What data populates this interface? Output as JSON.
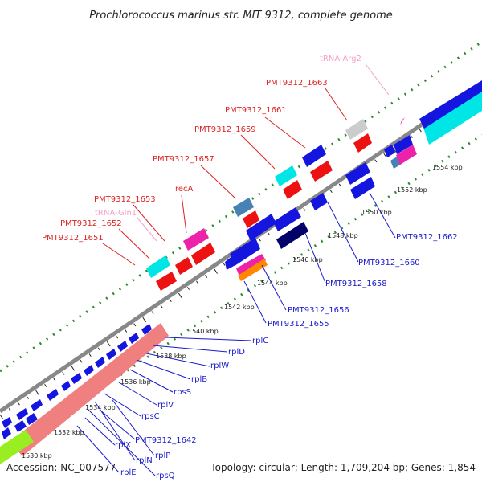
{
  "title": "Prochlorococcus marinus str. MIT 9312, complete genome",
  "footer": {
    "accession": "Accession: NC_007577",
    "info": "Topology: circular; Length: 1,709,204 bp; Genes: 1,854"
  },
  "colors": {
    "backbone": "#888888",
    "dotted": "#2e8b2e",
    "label_top": "#dd2222",
    "label_bottom": "#1a1acc",
    "label_trna": "#f4a0c8",
    "gene_blue": "#1515e0",
    "gene_red": "#ee1111",
    "gene_salmon": "#f08080",
    "gene_cyan": "#00e5e5",
    "gene_magenta": "#ee22aa",
    "gene_steel": "#4682b4",
    "gene_navy": "#00006a",
    "gene_orange": "#ff8800",
    "gene_gray": "#cccccc",
    "gene_lime": "#99ee22"
  },
  "ticks": [
    "1530 kbp",
    "1532 kbp",
    "1534 kbp",
    "1536 kbp",
    "1538 kbp",
    "1540 kbp",
    "1542 kbp",
    "1544 kbp",
    "1546 kbp",
    "1548 kbp",
    "1550 kbp",
    "1552 kbp",
    "1554 kbp"
  ],
  "top_labels": [
    "PMT9312_1663",
    "PMT9312_1661",
    "PMT9312_1659",
    "PMT9312_1657",
    "recA",
    "PMT9312_1653",
    "PMT9312_1652",
    "PMT9312_1651"
  ],
  "trna_labels": [
    "tRNA-Arg2",
    "tRNA-Gln1"
  ],
  "bottom_labels": [
    "PMT9312_1662",
    "PMT9312_1660",
    "PMT9312_1658",
    "PMT9312_1656",
    "PMT9312_1655",
    "rplC",
    "rplD",
    "rplW",
    "rplB",
    "rpsS",
    "rplV",
    "rpsC",
    "PMT9312_1642",
    "rplX",
    "rplP",
    "rplN",
    "rplE",
    "rpsQ"
  ]
}
